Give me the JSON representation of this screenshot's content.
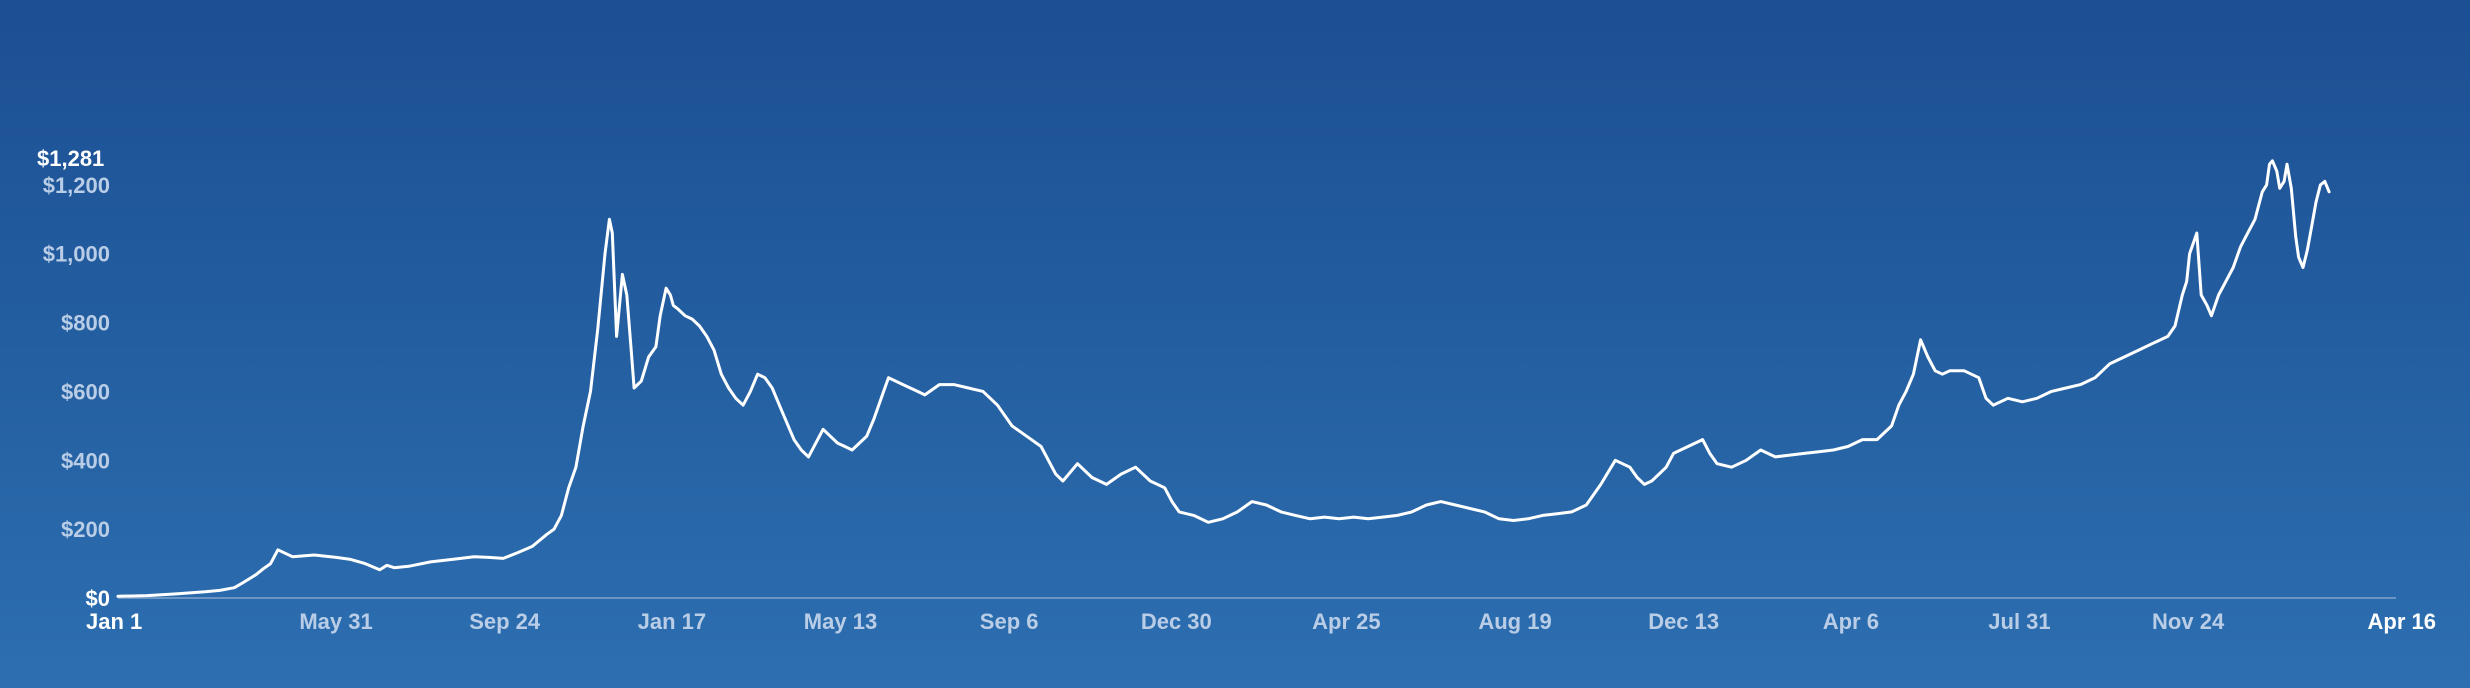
{
  "chart_data": {
    "type": "line",
    "title": "",
    "xlabel": "",
    "ylabel": "",
    "max_label": "$1,281",
    "ylim": [
      0,
      1281
    ],
    "y_ticks": [
      {
        "value": 0,
        "label": "$0"
      },
      {
        "value": 200,
        "label": "$200"
      },
      {
        "value": 400,
        "label": "$400"
      },
      {
        "value": 600,
        "label": "$600"
      },
      {
        "value": 800,
        "label": "$800"
      },
      {
        "value": 1000,
        "label": "$1,000"
      },
      {
        "value": 1200,
        "label": "$1,200"
      }
    ],
    "x_ticks": [
      {
        "x": 0,
        "label": "Jan 1"
      },
      {
        "x": 150,
        "label": "May 31"
      },
      {
        "x": 266,
        "label": "Sep 24"
      },
      {
        "x": 381,
        "label": "Jan 17"
      },
      {
        "x": 497,
        "label": "May 13"
      },
      {
        "x": 613,
        "label": "Sep 6"
      },
      {
        "x": 728,
        "label": "Dec 30"
      },
      {
        "x": 845,
        "label": "Apr 25"
      },
      {
        "x": 961,
        "label": "Aug 19"
      },
      {
        "x": 1077,
        "label": "Dec 13"
      },
      {
        "x": 1192,
        "label": "Apr 6"
      },
      {
        "x": 1308,
        "label": "Jul 31"
      },
      {
        "x": 1424,
        "label": "Nov 24"
      },
      {
        "x": 1567,
        "label": "Apr 16"
      }
    ],
    "x_range": [
      0,
      1567
    ],
    "grid": false,
    "series": [
      {
        "name": "",
        "x": [
          0,
          20,
          40,
          60,
          70,
          80,
          85,
          90,
          95,
          100,
          105,
          110,
          120,
          135,
          150,
          160,
          170,
          180,
          185,
          190,
          200,
          215,
          230,
          245,
          255,
          265,
          275,
          285,
          295,
          300,
          305,
          310,
          315,
          320,
          325,
          330,
          335,
          338,
          340,
          343,
          347,
          350,
          353,
          355,
          360,
          365,
          370,
          373,
          377,
          380,
          382,
          385,
          390,
          395,
          400,
          405,
          410,
          415,
          420,
          425,
          430,
          435,
          440,
          445,
          450,
          455,
          460,
          465,
          470,
          475,
          480,
          485,
          490,
          495,
          500,
          505,
          510,
          515,
          520,
          525,
          530,
          540,
          550,
          555,
          565,
          575,
          585,
          595,
          605,
          615,
          625,
          635,
          640,
          645,
          650,
          660,
          670,
          680,
          690,
          700,
          710,
          720,
          725,
          730,
          740,
          750,
          760,
          770,
          780,
          790,
          800,
          810,
          820,
          830,
          840,
          850,
          860,
          870,
          880,
          890,
          900,
          910,
          920,
          930,
          940,
          950,
          960,
          970,
          980,
          990,
          1000,
          1010,
          1020,
          1030,
          1040,
          1045,
          1050,
          1055,
          1060,
          1065,
          1070,
          1080,
          1090,
          1095,
          1100,
          1110,
          1120,
          1130,
          1140,
          1150,
          1160,
          1170,
          1180,
          1190,
          1200,
          1210,
          1220,
          1225,
          1230,
          1235,
          1240,
          1245,
          1250,
          1255,
          1260,
          1270,
          1280,
          1285,
          1290,
          1300,
          1310,
          1320,
          1330,
          1340,
          1350,
          1360,
          1370,
          1380,
          1390,
          1400,
          1410,
          1415,
          1420,
          1423,
          1425,
          1430,
          1433,
          1437,
          1440,
          1445,
          1450,
          1455,
          1460,
          1465,
          1470,
          1475,
          1478,
          1480,
          1482,
          1485,
          1487,
          1490,
          1492,
          1495,
          1498,
          1500,
          1503,
          1506,
          1509,
          1512,
          1515,
          1518,
          1521
        ],
        "values": [
          5,
          7,
          12,
          18,
          22,
          30,
          42,
          55,
          68,
          85,
          100,
          140,
          120,
          125,
          118,
          112,
          100,
          82,
          95,
          88,
          92,
          105,
          112,
          120,
          118,
          115,
          132,
          150,
          185,
          200,
          240,
          320,
          380,
          500,
          600,
          780,
          1000,
          1100,
          1060,
          760,
          940,
          880,
          720,
          610,
          630,
          700,
          730,
          820,
          900,
          880,
          850,
          840,
          820,
          810,
          790,
          760,
          720,
          650,
          610,
          580,
          560,
          600,
          650,
          640,
          610,
          560,
          510,
          460,
          430,
          410,
          450,
          490,
          470,
          450,
          440,
          430,
          450,
          470,
          520,
          580,
          640,
          620,
          600,
          590,
          620,
          620,
          610,
          600,
          560,
          500,
          470,
          440,
          400,
          360,
          340,
          390,
          350,
          330,
          360,
          380,
          340,
          320,
          280,
          250,
          240,
          220,
          230,
          250,
          280,
          270,
          250,
          240,
          230,
          235,
          230,
          235,
          230,
          235,
          240,
          250,
          270,
          280,
          270,
          260,
          250,
          230,
          225,
          230,
          240,
          245,
          250,
          270,
          330,
          400,
          380,
          350,
          330,
          340,
          360,
          380,
          420,
          440,
          460,
          420,
          390,
          380,
          400,
          430,
          410,
          415,
          420,
          425,
          430,
          440,
          460,
          460,
          500,
          560,
          600,
          650,
          750,
          700,
          660,
          650,
          660,
          660,
          640,
          580,
          560,
          580,
          570,
          580,
          600,
          610,
          620,
          640,
          680,
          700,
          720,
          740,
          760,
          790,
          880,
          920,
          1000,
          1060,
          880,
          850,
          820,
          880,
          920,
          960,
          1020,
          1060,
          1100,
          1180,
          1200,
          1260,
          1270,
          1240,
          1190,
          1210,
          1260,
          1190,
          1050,
          990,
          960,
          1010,
          1080,
          1150,
          1200,
          1210,
          1180
        ]
      }
    ]
  }
}
